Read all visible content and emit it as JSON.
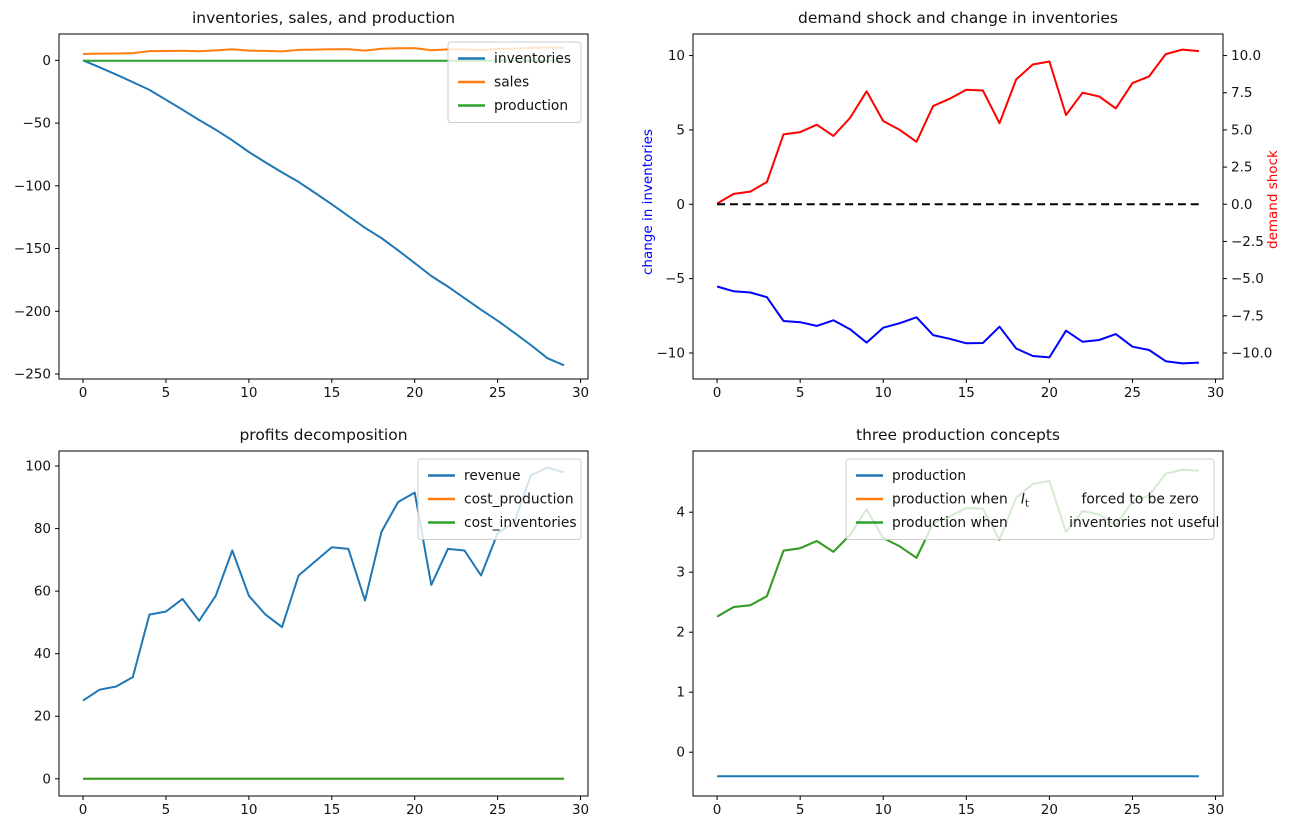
{
  "figure": {
    "background": "#ffffff",
    "frame_color": "#000000",
    "tick_color": "#000000"
  },
  "chart_data": [
    {
      "id": "inventories-sales-production",
      "type": "line",
      "title": "inventories, sales, and production",
      "x": [
        0,
        1,
        2,
        3,
        4,
        5,
        6,
        7,
        8,
        9,
        10,
        11,
        12,
        13,
        14,
        15,
        16,
        17,
        18,
        19,
        20,
        21,
        22,
        23,
        24,
        25,
        26,
        27,
        28,
        29
      ],
      "xlim": [
        -1.45,
        30.45
      ],
      "ylim": [
        -254,
        21
      ],
      "xticks": {
        "values": [
          0,
          5,
          10,
          15,
          20,
          25,
          30
        ],
        "labels": [
          "0",
          "5",
          "10",
          "15",
          "20",
          "25",
          "30"
        ]
      },
      "yticks_left": {
        "values": [
          0,
          -50,
          -100,
          -150,
          -200,
          -250
        ],
        "labels": [
          "0",
          "−50",
          "−100",
          "−150",
          "−200",
          "−250"
        ]
      },
      "legend": {
        "loc": "upper right",
        "entries": [
          {
            "color": "#1f77b4",
            "label": "inventories"
          },
          {
            "color": "#ff7f0e",
            "label": "sales"
          },
          {
            "color": "#2ca02c",
            "label": "production"
          }
        ]
      },
      "series": [
        {
          "name": "inventories",
          "color": "#1f77b4",
          "values": [
            0,
            -5.53,
            -11.38,
            -17.31,
            -23.56,
            -31.41,
            -39.34,
            -47.52,
            -55.32,
            -63.72,
            -73.02,
            -81.32,
            -89.32,
            -96.92,
            -105.72,
            -114.77,
            -124.12,
            -133.45,
            -141.68,
            -151.38,
            -161.58,
            -171.88,
            -180.38,
            -189.63,
            -198.76,
            -207.49,
            -217.07,
            -226.87,
            -237.42,
            -243.1
          ]
        },
        {
          "name": "sales",
          "color": "#ff7f0e",
          "values": [
            5.03,
            5.35,
            5.43,
            5.75,
            7.35,
            7.43,
            7.68,
            7.3,
            7.9,
            8.8,
            7.8,
            7.5,
            7.1,
            8.3,
            8.55,
            8.85,
            8.83,
            7.73,
            9.2,
            9.7,
            9.8,
            8.0,
            8.75,
            8.63,
            8.23,
            9.08,
            9.3,
            10.05,
            10.2,
            10.15
          ]
        },
        {
          "name": "production",
          "color": "#2ca02c",
          "values": [
            -0.4,
            -0.4,
            -0.4,
            -0.4,
            -0.4,
            -0.4,
            -0.4,
            -0.4,
            -0.4,
            -0.4,
            -0.4,
            -0.4,
            -0.4,
            -0.4,
            -0.4,
            -0.4,
            -0.4,
            -0.4,
            -0.4,
            -0.4,
            -0.4,
            -0.4,
            -0.4,
            -0.4,
            -0.4,
            -0.4,
            -0.4,
            -0.4,
            -0.4,
            -0.4
          ]
        }
      ]
    },
    {
      "id": "demand-shock-change-inventories",
      "type": "line",
      "title": "demand shock and change in inventories",
      "x": [
        0,
        1,
        2,
        3,
        4,
        5,
        6,
        7,
        8,
        9,
        10,
        11,
        12,
        13,
        14,
        15,
        16,
        17,
        18,
        19,
        20,
        21,
        22,
        23,
        24,
        25,
        26,
        27,
        28,
        29
      ],
      "xlim": [
        -1.45,
        30.45
      ],
      "ylim": [
        -11.75,
        11.45
      ],
      "xticks": {
        "values": [
          0,
          5,
          10,
          15,
          20,
          25,
          30
        ],
        "labels": [
          "0",
          "5",
          "10",
          "15",
          "20",
          "25",
          "30"
        ]
      },
      "yticks_left": {
        "values": [
          10,
          5,
          0,
          -5,
          -10
        ],
        "labels": [
          "10",
          "5",
          "0",
          "−5",
          "−10"
        ]
      },
      "yticks_right": {
        "values": [
          10,
          7.5,
          5,
          2.5,
          0,
          -2.5,
          -5,
          -7.5,
          -10
        ],
        "labels": [
          "10.0",
          "7.5",
          "5.0",
          "2.5",
          "0.0",
          "−2.5",
          "−5.0",
          "−7.5",
          "−10.0"
        ]
      },
      "ylabel_left": {
        "text": "change in inventories",
        "color": "#0000ff"
      },
      "ylabel_right": {
        "text": "demand shock",
        "color": "#ff0000"
      },
      "series": [
        {
          "name": "change in inventories",
          "color": "#0000ff",
          "values": [
            -5.53,
            -5.85,
            -5.93,
            -6.25,
            -7.85,
            -7.93,
            -8.18,
            -7.8,
            -8.4,
            -9.3,
            -8.3,
            -8.0,
            -7.6,
            -8.8,
            -9.05,
            -9.35,
            -9.33,
            -8.23,
            -9.7,
            -10.2,
            -10.3,
            -8.5,
            -9.25,
            -9.13,
            -8.73,
            -9.58,
            -9.8,
            -10.55,
            -10.7,
            -10.65
          ]
        },
        {
          "name": "demand shock",
          "color": "#ff0000",
          "values": [
            0.05,
            0.7,
            0.85,
            1.5,
            4.7,
            4.85,
            5.35,
            4.6,
            5.8,
            7.6,
            5.6,
            5.0,
            4.2,
            6.6,
            7.1,
            7.7,
            7.65,
            5.45,
            8.4,
            9.4,
            9.6,
            6.0,
            7.5,
            7.25,
            6.45,
            8.15,
            8.6,
            10.1,
            10.4,
            10.3
          ]
        },
        {
          "name": "zero line",
          "color": "#000000",
          "dashed": true,
          "values": [
            0,
            0,
            0,
            0,
            0,
            0,
            0,
            0,
            0,
            0,
            0,
            0,
            0,
            0,
            0,
            0,
            0,
            0,
            0,
            0,
            0,
            0,
            0,
            0,
            0,
            0,
            0,
            0,
            0,
            0
          ]
        }
      ]
    },
    {
      "id": "profits-decomposition",
      "type": "line",
      "title": "profits decomposition",
      "x": [
        0,
        1,
        2,
        3,
        4,
        5,
        6,
        7,
        8,
        9,
        10,
        11,
        12,
        13,
        14,
        15,
        16,
        17,
        18,
        19,
        20,
        21,
        22,
        23,
        24,
        25,
        26,
        27,
        28,
        29
      ],
      "xlim": [
        -1.45,
        30.45
      ],
      "ylim": [
        -5.5,
        104.8
      ],
      "xticks": {
        "values": [
          0,
          5,
          10,
          15,
          20,
          25,
          30
        ],
        "labels": [
          "0",
          "5",
          "10",
          "15",
          "20",
          "25",
          "30"
        ]
      },
      "yticks_left": {
        "values": [
          100,
          80,
          60,
          40,
          20,
          0
        ],
        "labels": [
          "100",
          "80",
          "60",
          "40",
          "20",
          "0"
        ]
      },
      "legend": {
        "loc": "upper right",
        "entries": [
          {
            "color": "#1f77b4",
            "label": "revenue"
          },
          {
            "color": "#ff7f0e",
            "label": "cost_production"
          },
          {
            "color": "#2ca02c",
            "label": "cost_inventories"
          }
        ]
      },
      "series": [
        {
          "name": "revenue",
          "color": "#1f77b4",
          "values": [
            25,
            28.5,
            29.5,
            32.5,
            52.5,
            53.5,
            57.5,
            50.5,
            58.5,
            73,
            58.5,
            52.5,
            48.5,
            65,
            69.5,
            74,
            73.5,
            57,
            79,
            88.5,
            91.5,
            62,
            73.5,
            73,
            65,
            78.5,
            82,
            97,
            99.5,
            98
          ]
        },
        {
          "name": "cost_production",
          "color": "#ff7f0e",
          "values": [
            0,
            0,
            0,
            0,
            0,
            0,
            0,
            0,
            0,
            0,
            0,
            0,
            0,
            0,
            0,
            0,
            0,
            0,
            0,
            0,
            0,
            0,
            0,
            0,
            0,
            0,
            0,
            0,
            0,
            0
          ]
        },
        {
          "name": "cost_inventories",
          "color": "#2ca02c",
          "values": [
            0,
            0,
            0,
            0,
            0,
            0,
            0,
            0,
            0,
            0,
            0,
            0,
            0,
            0,
            0,
            0,
            0,
            0,
            0,
            0,
            0,
            0,
            0,
            0,
            0,
            0,
            0,
            0,
            0,
            0
          ]
        }
      ]
    },
    {
      "id": "three-production-concepts",
      "type": "line",
      "title": "three production concepts",
      "x": [
        0,
        1,
        2,
        3,
        4,
        5,
        6,
        7,
        8,
        9,
        10,
        11,
        12,
        13,
        14,
        15,
        16,
        17,
        18,
        19,
        20,
        21,
        22,
        23,
        24,
        25,
        26,
        27,
        28,
        29
      ],
      "xlim": [
        -1.45,
        30.45
      ],
      "ylim": [
        -0.73,
        5.02
      ],
      "xticks": {
        "values": [
          0,
          5,
          10,
          15,
          20,
          25,
          30
        ],
        "labels": [
          "0",
          "5",
          "10",
          "15",
          "20",
          "25",
          "30"
        ]
      },
      "yticks_left": {
        "values": [
          4,
          3,
          2,
          1,
          0
        ],
        "labels": [
          "4",
          "3",
          "2",
          "1",
          "0"
        ]
      },
      "legend": {
        "loc": "upper center",
        "entries": [
          {
            "color": "#1f77b4",
            "label": "production"
          },
          {
            "color": "#ff7f0e",
            "label_pre": "production when   ",
            "label_math": "I",
            "label_sub": "t",
            "label_post": "            forced to be zero"
          },
          {
            "color": "#2ca02c",
            "label_pre": "production when",
            "label_post": "              inventories not useful"
          }
        ]
      },
      "series": [
        {
          "name": "production",
          "color": "#1f77b4",
          "values": [
            -0.4,
            -0.4,
            -0.4,
            -0.4,
            -0.4,
            -0.4,
            -0.4,
            -0.4,
            -0.4,
            -0.4,
            -0.4,
            -0.4,
            -0.4,
            -0.4,
            -0.4,
            -0.4,
            -0.4,
            -0.4,
            -0.4,
            -0.4,
            -0.4,
            -0.4,
            -0.4,
            -0.4,
            -0.4,
            -0.4,
            -0.4,
            -0.4,
            -0.4,
            -0.4
          ]
        },
        {
          "name": "production when I_t forced to be zero",
          "color": "#ff7f0e",
          "values": [
            2.26,
            2.42,
            2.45,
            2.6,
            3.36,
            3.4,
            3.52,
            3.34,
            3.62,
            4.05,
            3.57,
            3.43,
            3.24,
            3.81,
            3.93,
            4.07,
            4.06,
            3.54,
            4.24,
            4.47,
            4.52,
            3.67,
            4.02,
            3.96,
            3.78,
            4.18,
            4.28,
            4.64,
            4.71,
            4.69
          ]
        },
        {
          "name": "production when inventories not useful",
          "color": "#2ca02c",
          "values": [
            2.26,
            2.42,
            2.45,
            2.6,
            3.36,
            3.4,
            3.52,
            3.34,
            3.62,
            4.05,
            3.57,
            3.43,
            3.24,
            3.81,
            3.93,
            4.07,
            4.06,
            3.54,
            4.24,
            4.47,
            4.52,
            3.67,
            4.02,
            3.96,
            3.78,
            4.18,
            4.28,
            4.64,
            4.71,
            4.69
          ]
        }
      ]
    }
  ]
}
